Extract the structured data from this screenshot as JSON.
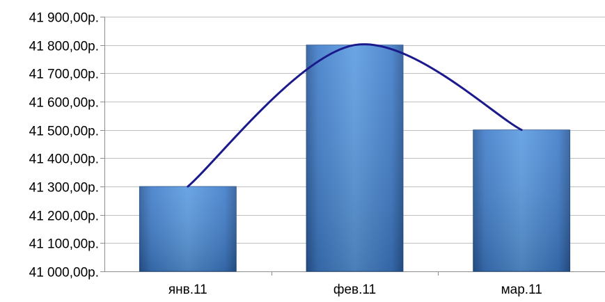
{
  "chart_data": {
    "type": "bar",
    "categories": [
      "янв.11",
      "фев.11",
      "мар.11"
    ],
    "values": [
      41300,
      41800,
      41500
    ],
    "trendline": {
      "type": "smooth-line",
      "values": [
        41300,
        41800,
        41500
      ]
    },
    "ylim": [
      41000,
      41900
    ],
    "y_ticks": [
      41000,
      41100,
      41200,
      41300,
      41400,
      41500,
      41600,
      41700,
      41800,
      41900
    ],
    "y_tick_labels": [
      "41 000,00р.",
      "41 100,00р.",
      "41 200,00р.",
      "41 300,00р.",
      "41 400,00р.",
      "41 500,00р.",
      "41 600,00р.",
      "41 700,00р.",
      "41 800,00р.",
      "41 900,00р."
    ],
    "grid": true,
    "title": "",
    "xlabel": "",
    "ylabel": "",
    "colors": {
      "bar_light": "#5b9be0",
      "bar_mid": "#3f7cc9",
      "bar_dark": "#2a5a9a",
      "bar_edge": "#1f4a86",
      "line": "#1a1a8c",
      "grid": "#bfbfbf",
      "axis": "#8c8c8c"
    }
  }
}
